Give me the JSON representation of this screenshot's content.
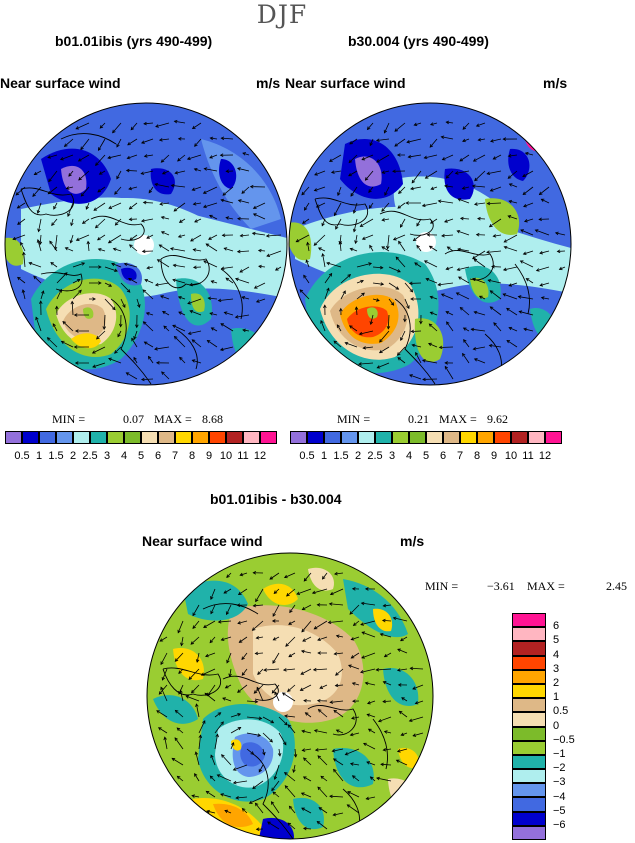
{
  "header": {
    "season": "DJF"
  },
  "panels": [
    {
      "id": "p1",
      "title": "b01.01ibis (yrs 490-499)",
      "variable": "Near surface wind",
      "units": "m/s",
      "min_label": "MIN =",
      "min": "0.07",
      "max_label": "MAX =",
      "max": "8.68"
    },
    {
      "id": "p2",
      "title": "b30.004 (yrs 490-499)",
      "variable": "Near surface wind",
      "units": "m/s",
      "min_label": "MIN =",
      "min": "0.21",
      "max_label": "MAX =",
      "max": "9.62"
    },
    {
      "id": "p3",
      "title": "b01.01ibis - b30.004",
      "variable": "Near surface wind",
      "units": "m/s",
      "min_label": "MIN =",
      "min": "−3.61",
      "max_label": "MAX =",
      "max": "2.45"
    }
  ],
  "colorbar_abs": {
    "colors": [
      "#9370db",
      "#0000cd",
      "#4169e1",
      "#6495ed",
      "#afeeee",
      "#20b2aa",
      "#9acd32",
      "#7cbb2a",
      "#f5deb3",
      "#deb887",
      "#ffd700",
      "#ffa500",
      "#ff4500",
      "#b22222",
      "#ffb6c1",
      "#ff1493"
    ],
    "labels": [
      "0.5",
      "1",
      "1.5",
      "2",
      "2.5",
      "3",
      "4",
      "5",
      "6",
      "7",
      "8",
      "9",
      "10",
      "11",
      "12"
    ]
  },
  "colorbar_diff": {
    "colors": [
      "#9370db",
      "#0000cd",
      "#4169e1",
      "#6495ed",
      "#afeeee",
      "#20b2aa",
      "#9acd32",
      "#7cbb2a",
      "#f5deb3",
      "#deb887",
      "#ffd700",
      "#ffa500",
      "#ff4500",
      "#b22222",
      "#ffb6c1",
      "#ff1493"
    ],
    "labels": [
      "6",
      "5",
      "4",
      "3",
      "2",
      "1",
      "0.5",
      "0",
      "−0.5",
      "−1",
      "−2",
      "−3",
      "−4",
      "−5",
      "−6"
    ]
  }
}
